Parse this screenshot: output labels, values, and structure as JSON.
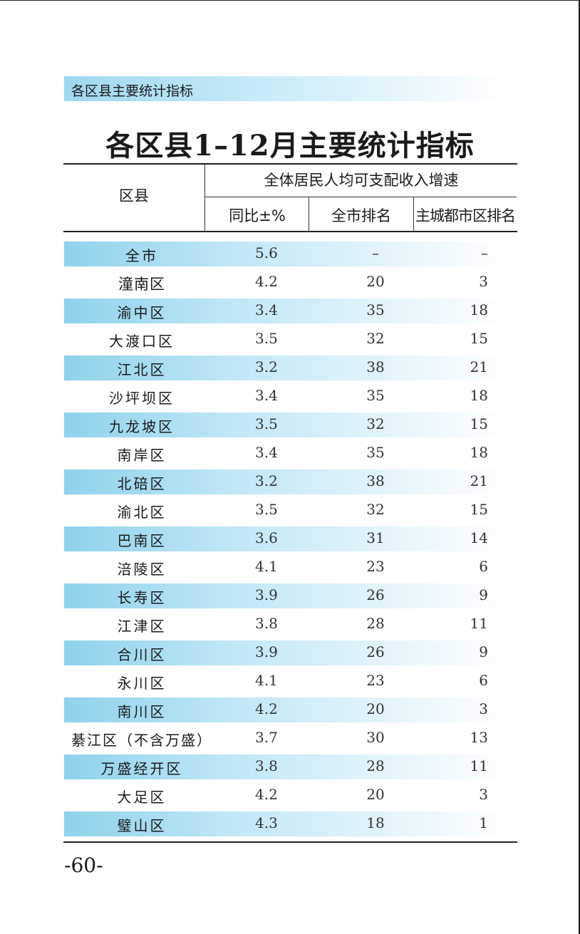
{
  "section_header": "各区县主要统计指标",
  "title": "各区县1–12月主要统计指标",
  "table": {
    "header": {
      "district": "区县",
      "group": "全体居民人均可支配收入增速",
      "yoy": "同比±%",
      "city_rank": "全市排名",
      "main_rank": "主城都市区排名"
    },
    "rows": [
      {
        "name": "全市",
        "yoy": "5.6",
        "city_rank": "–",
        "main_rank": "–",
        "shaded": true
      },
      {
        "name": "潼南区",
        "yoy": "4.2",
        "city_rank": "20",
        "main_rank": "3",
        "shaded": false
      },
      {
        "name": "渝中区",
        "yoy": "3.4",
        "city_rank": "35",
        "main_rank": "18",
        "shaded": true
      },
      {
        "name": "大渡口区",
        "yoy": "3.5",
        "city_rank": "32",
        "main_rank": "15",
        "shaded": false
      },
      {
        "name": "江北区",
        "yoy": "3.2",
        "city_rank": "38",
        "main_rank": "21",
        "shaded": true
      },
      {
        "name": "沙坪坝区",
        "yoy": "3.4",
        "city_rank": "35",
        "main_rank": "18",
        "shaded": false
      },
      {
        "name": "九龙坡区",
        "yoy": "3.5",
        "city_rank": "32",
        "main_rank": "15",
        "shaded": true
      },
      {
        "name": "南岸区",
        "yoy": "3.4",
        "city_rank": "35",
        "main_rank": "18",
        "shaded": false
      },
      {
        "name": "北碚区",
        "yoy": "3.2",
        "city_rank": "38",
        "main_rank": "21",
        "shaded": true
      },
      {
        "name": "渝北区",
        "yoy": "3.5",
        "city_rank": "32",
        "main_rank": "15",
        "shaded": false
      },
      {
        "name": "巴南区",
        "yoy": "3.6",
        "city_rank": "31",
        "main_rank": "14",
        "shaded": true
      },
      {
        "name": "涪陵区",
        "yoy": "4.1",
        "city_rank": "23",
        "main_rank": "6",
        "shaded": false
      },
      {
        "name": "长寿区",
        "yoy": "3.9",
        "city_rank": "26",
        "main_rank": "9",
        "shaded": true
      },
      {
        "name": "江津区",
        "yoy": "3.8",
        "city_rank": "28",
        "main_rank": "11",
        "shaded": false
      },
      {
        "name": "合川区",
        "yoy": "3.9",
        "city_rank": "26",
        "main_rank": "9",
        "shaded": true
      },
      {
        "name": "永川区",
        "yoy": "4.1",
        "city_rank": "23",
        "main_rank": "6",
        "shaded": false
      },
      {
        "name": "南川区",
        "yoy": "4.2",
        "city_rank": "20",
        "main_rank": "3",
        "shaded": true
      },
      {
        "name": "綦江区（不含万盛）",
        "yoy": "3.7",
        "city_rank": "30",
        "main_rank": "13",
        "shaded": false
      },
      {
        "name": "万盛经开区",
        "yoy": "3.8",
        "city_rank": "28",
        "main_rank": "11",
        "shaded": true
      },
      {
        "name": "大足区",
        "yoy": "4.2",
        "city_rank": "20",
        "main_rank": "3",
        "shaded": false
      },
      {
        "name": "璧山区",
        "yoy": "4.3",
        "city_rank": "18",
        "main_rank": "1",
        "shaded": true
      }
    ]
  },
  "page_number": "-60-"
}
